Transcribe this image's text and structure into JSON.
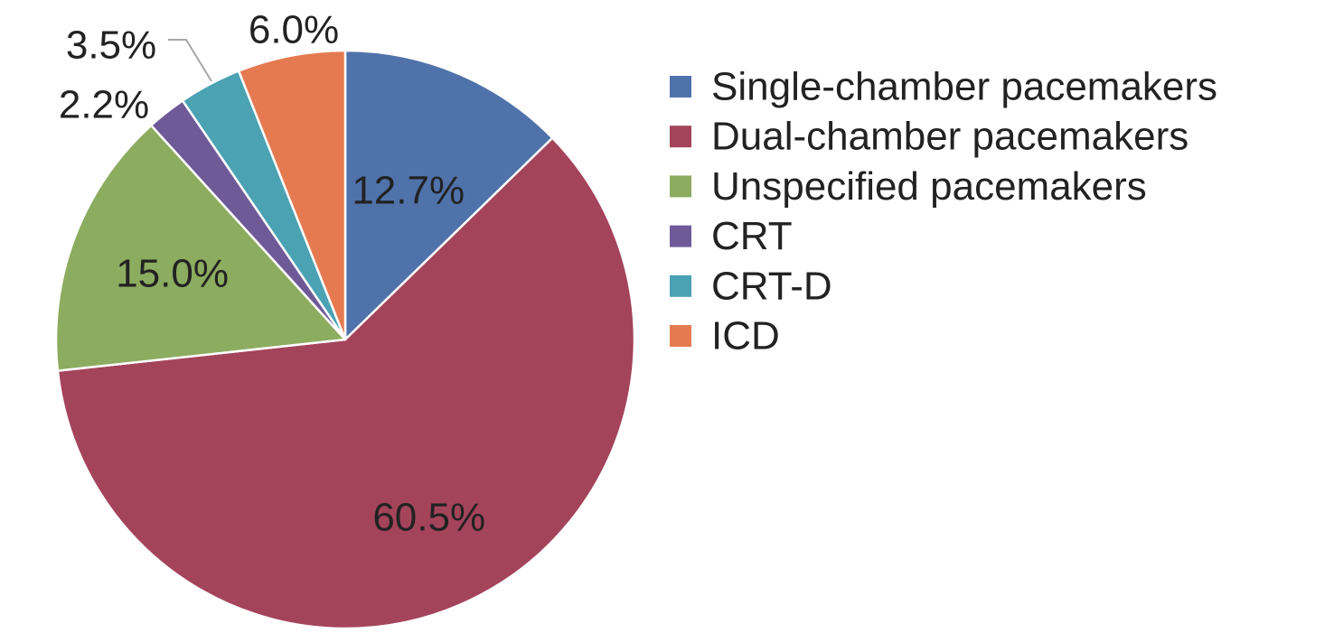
{
  "chart_data": {
    "type": "pie",
    "title": "",
    "legend_position": "right",
    "slices": [
      {
        "name": "Single-chamber pacemakers",
        "value": 12.7,
        "label": "12.7%",
        "color": "#4f72aa"
      },
      {
        "name": "Dual-chamber pacemakers",
        "value": 60.5,
        "label": "60.5%",
        "color": "#a4445b"
      },
      {
        "name": "Unspecified pacemakers",
        "value": 15.0,
        "label": "15.0%",
        "color": "#8cac5f"
      },
      {
        "name": "CRT",
        "value": 2.2,
        "label": "2.2%",
        "color": "#6f5a98"
      },
      {
        "name": "CRT-D",
        "value": 3.5,
        "label": "3.5%",
        "color": "#4aa2b3"
      },
      {
        "name": "ICD",
        "value": 6.0,
        "label": "6.0%",
        "color": "#e57a50"
      }
    ]
  }
}
